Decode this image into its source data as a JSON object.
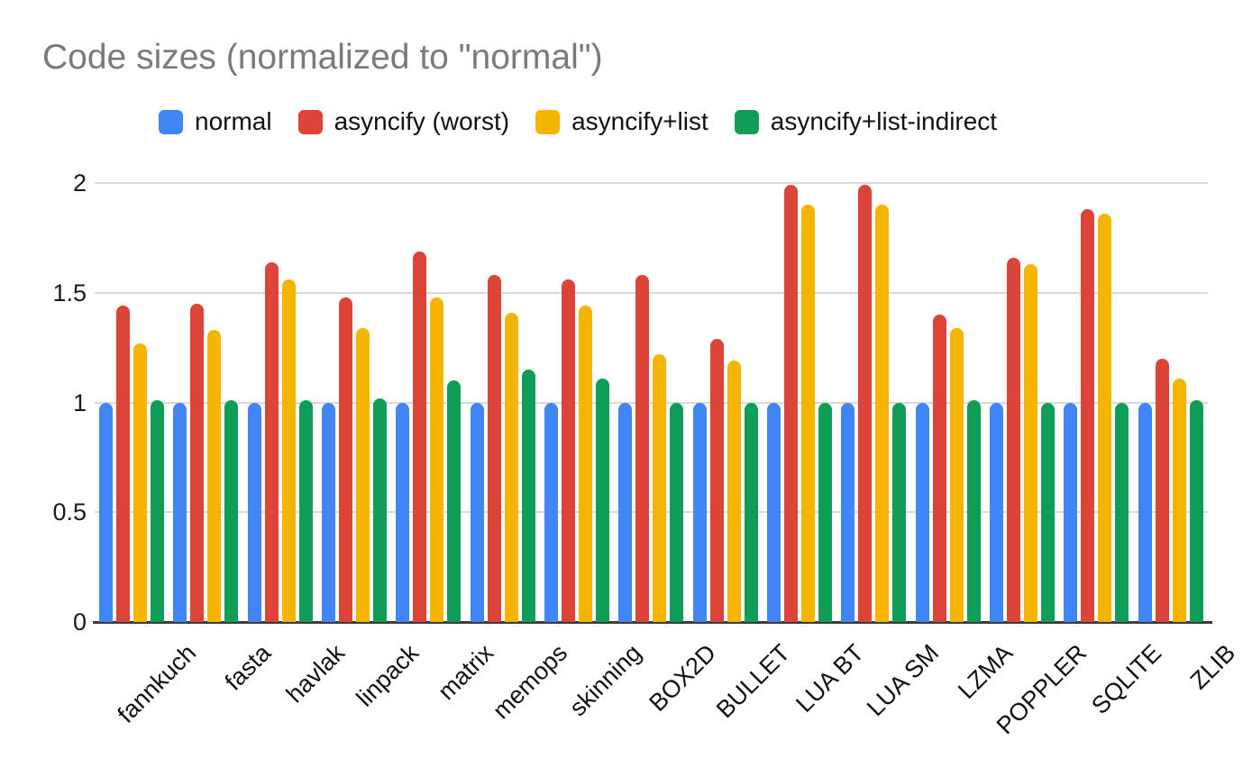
{
  "chart_data": {
    "type": "bar",
    "title": "Code sizes (normalized to \"normal\")",
    "xlabel": "",
    "ylabel": "",
    "ylim": [
      0,
      2
    ],
    "yticks": [
      0,
      0.5,
      1,
      1.5,
      2
    ],
    "grid": true,
    "legend_position": "top",
    "title_color": "#7a7a7a",
    "categories": [
      "fannkuch",
      "fasta",
      "havlak",
      "linpack",
      "matrix",
      "memops",
      "skinning",
      "BOX2D",
      "BULLET",
      "LUA BT",
      "LUA SM",
      "LZMA",
      "POPPLER",
      "SQLITE",
      "ZLIB"
    ],
    "series": [
      {
        "name": "normal",
        "color": "#4285F4",
        "values": [
          1.0,
          1.0,
          1.0,
          1.0,
          1.0,
          1.0,
          1.0,
          1.0,
          1.0,
          1.0,
          1.0,
          1.0,
          1.0,
          1.0,
          1.0
        ]
      },
      {
        "name": "asyncify (worst)",
        "color": "#DB4437",
        "values": [
          1.44,
          1.45,
          1.64,
          1.48,
          1.69,
          1.58,
          1.56,
          1.58,
          1.29,
          1.99,
          1.99,
          1.4,
          1.66,
          1.88,
          1.2
        ]
      },
      {
        "name": "asyncify+list",
        "color": "#F4B400",
        "values": [
          1.27,
          1.33,
          1.56,
          1.34,
          1.48,
          1.41,
          1.44,
          1.22,
          1.19,
          1.9,
          1.9,
          1.34,
          1.63,
          1.86,
          1.11
        ]
      },
      {
        "name": "asyncify+list-indirect",
        "color": "#0F9D58",
        "values": [
          1.01,
          1.01,
          1.01,
          1.02,
          1.1,
          1.15,
          1.11,
          1.0,
          1.0,
          1.0,
          1.0,
          1.01,
          1.0,
          1.0,
          1.01
        ]
      }
    ]
  }
}
